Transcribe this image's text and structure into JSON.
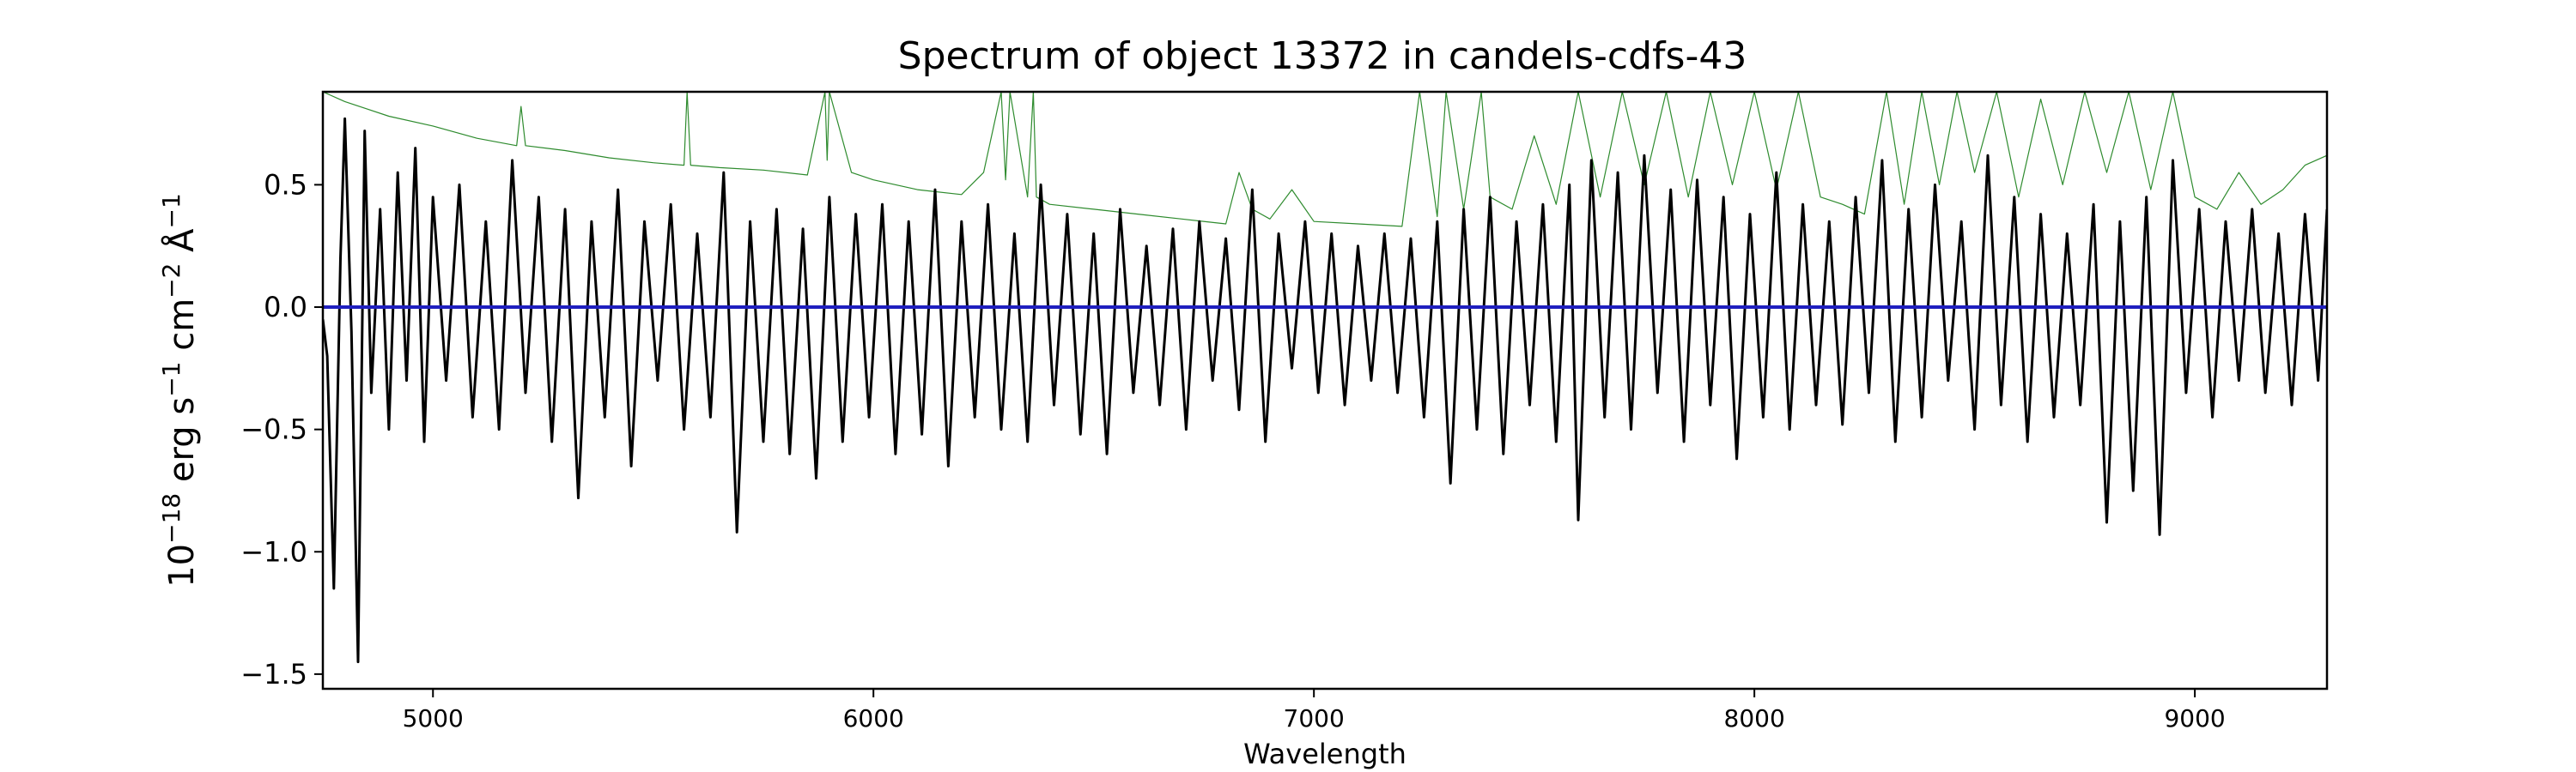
{
  "chart_data": {
    "type": "line",
    "title": "Spectrum of object 13372 in candels-cdfs-43",
    "xlabel": "Wavelength",
    "ylabel": {
      "base": "10",
      "exp": "−18",
      "rest": " erg s",
      "s_exp": "−1",
      "cm": " cm",
      "cm_exp": "−2",
      "ang": " Å",
      "ang_exp": "−1"
    },
    "xlim": [
      4750,
      9300
    ],
    "ylim": [
      -1.56,
      0.88
    ],
    "xticks": [
      5000,
      6000,
      7000,
      8000,
      9000
    ],
    "xtick_labels": [
      "5000",
      "6000",
      "7000",
      "8000",
      "9000"
    ],
    "yticks": [
      -1.5,
      -1.0,
      -0.5,
      0.0,
      0.5
    ],
    "ytick_labels": [
      "−1.5",
      "−1.0",
      "−0.5",
      "0.0",
      "0.5"
    ],
    "grid": false,
    "series": [
      {
        "role": "sky-noise",
        "color": "#2e8b2e",
        "x": [
          4750,
          4800,
          4900,
          5000,
          5100,
          5190,
          5200,
          5210,
          5300,
          5400,
          5500,
          5570,
          5577,
          5585,
          5650,
          5750,
          5850,
          5890,
          5895,
          5900,
          5950,
          6000,
          6100,
          6200,
          6250,
          6290,
          6300,
          6310,
          6350,
          6363,
          6370,
          6400,
          6500,
          6600,
          6700,
          6800,
          6830,
          6860,
          6900,
          6950,
          7000,
          7100,
          7200,
          7240,
          7280,
          7300,
          7340,
          7380,
          7400,
          7450,
          7500,
          7550,
          7600,
          7650,
          7700,
          7750,
          7800,
          7850,
          7900,
          7950,
          8000,
          8050,
          8100,
          8150,
          8200,
          8250,
          8300,
          8340,
          8380,
          8420,
          8460,
          8500,
          8550,
          8600,
          8650,
          8700,
          8750,
          8800,
          8850,
          8900,
          8950,
          9000,
          9050,
          9100,
          9150,
          9200,
          9250,
          9300
        ],
        "y": [
          0.88,
          0.84,
          0.78,
          0.74,
          0.69,
          0.66,
          0.82,
          0.66,
          0.64,
          0.61,
          0.59,
          0.58,
          0.88,
          0.58,
          0.57,
          0.56,
          0.54,
          0.88,
          0.6,
          0.88,
          0.55,
          0.52,
          0.48,
          0.46,
          0.55,
          0.88,
          0.52,
          0.88,
          0.45,
          0.88,
          0.45,
          0.42,
          0.4,
          0.38,
          0.36,
          0.34,
          0.55,
          0.4,
          0.36,
          0.48,
          0.35,
          0.34,
          0.33,
          0.88,
          0.37,
          0.88,
          0.4,
          0.88,
          0.45,
          0.4,
          0.7,
          0.42,
          0.88,
          0.45,
          0.88,
          0.5,
          0.88,
          0.45,
          0.88,
          0.5,
          0.88,
          0.48,
          0.88,
          0.45,
          0.42,
          0.38,
          0.88,
          0.42,
          0.88,
          0.5,
          0.88,
          0.55,
          0.88,
          0.45,
          0.85,
          0.5,
          0.88,
          0.55,
          0.88,
          0.48,
          0.88,
          0.45,
          0.4,
          0.55,
          0.42,
          0.48,
          0.58,
          0.62
        ]
      },
      {
        "role": "flux",
        "color": "#000000",
        "x": [
          4750,
          4760,
          4775,
          4790,
          4800,
          4815,
          4830,
          4845,
          4860,
          4880,
          4900,
          4920,
          4940,
          4960,
          4980,
          5000,
          5030,
          5060,
          5090,
          5120,
          5150,
          5180,
          5210,
          5240,
          5270,
          5300,
          5330,
          5360,
          5390,
          5420,
          5450,
          5480,
          5510,
          5540,
          5570,
          5600,
          5630,
          5660,
          5690,
          5720,
          5750,
          5780,
          5810,
          5840,
          5870,
          5900,
          5930,
          5960,
          5990,
          6020,
          6050,
          6080,
          6110,
          6140,
          6170,
          6200,
          6230,
          6260,
          6290,
          6320,
          6350,
          6380,
          6410,
          6440,
          6470,
          6500,
          6530,
          6560,
          6590,
          6620,
          6650,
          6680,
          6710,
          6740,
          6770,
          6800,
          6830,
          6860,
          6890,
          6920,
          6950,
          6980,
          7010,
          7040,
          7070,
          7100,
          7130,
          7160,
          7190,
          7220,
          7250,
          7280,
          7310,
          7340,
          7370,
          7400,
          7430,
          7460,
          7490,
          7520,
          7550,
          7580,
          7600,
          7630,
          7660,
          7690,
          7720,
          7750,
          7780,
          7810,
          7840,
          7870,
          7900,
          7930,
          7960,
          7990,
          8020,
          8050,
          8080,
          8110,
          8140,
          8170,
          8200,
          8230,
          8260,
          8290,
          8320,
          8350,
          8380,
          8410,
          8440,
          8470,
          8500,
          8530,
          8560,
          8590,
          8620,
          8650,
          8680,
          8710,
          8740,
          8770,
          8800,
          8830,
          8860,
          8890,
          8920,
          8950,
          8980,
          9010,
          9040,
          9070,
          9100,
          9130,
          9160,
          9190,
          9220,
          9250,
          9280,
          9300
        ],
        "y": [
          -0.05,
          -0.2,
          -1.15,
          0.2,
          0.77,
          -0.1,
          -1.45,
          0.72,
          -0.35,
          0.4,
          -0.5,
          0.55,
          -0.3,
          0.65,
          -0.55,
          0.45,
          -0.3,
          0.5,
          -0.45,
          0.35,
          -0.5,
          0.6,
          -0.35,
          0.45,
          -0.55,
          0.4,
          -0.78,
          0.35,
          -0.45,
          0.48,
          -0.65,
          0.35,
          -0.3,
          0.42,
          -0.5,
          0.3,
          -0.45,
          0.55,
          -0.92,
          0.35,
          -0.55,
          0.4,
          -0.6,
          0.32,
          -0.7,
          0.45,
          -0.55,
          0.38,
          -0.45,
          0.42,
          -0.6,
          0.35,
          -0.52,
          0.48,
          -0.65,
          0.35,
          -0.45,
          0.42,
          -0.5,
          0.3,
          -0.55,
          0.5,
          -0.4,
          0.38,
          -0.52,
          0.3,
          -0.6,
          0.4,
          -0.35,
          0.25,
          -0.4,
          0.32,
          -0.5,
          0.35,
          -0.3,
          0.28,
          -0.42,
          0.48,
          -0.55,
          0.3,
          -0.25,
          0.35,
          -0.35,
          0.3,
          -0.4,
          0.25,
          -0.3,
          0.3,
          -0.35,
          0.28,
          -0.45,
          0.35,
          -0.72,
          0.4,
          -0.5,
          0.45,
          -0.6,
          0.35,
          -0.4,
          0.42,
          -0.55,
          0.5,
          -0.87,
          0.6,
          -0.45,
          0.55,
          -0.5,
          0.62,
          -0.35,
          0.48,
          -0.55,
          0.52,
          -0.4,
          0.45,
          -0.62,
          0.38,
          -0.45,
          0.55,
          -0.5,
          0.42,
          -0.4,
          0.35,
          -0.48,
          0.45,
          -0.35,
          0.6,
          -0.55,
          0.4,
          -0.45,
          0.5,
          -0.3,
          0.35,
          -0.5,
          0.62,
          -0.4,
          0.45,
          -0.55,
          0.38,
          -0.45,
          0.3,
          -0.4,
          0.42,
          -0.88,
          0.35,
          -0.75,
          0.45,
          -0.93,
          0.6,
          -0.35,
          0.4,
          -0.45,
          0.35,
          -0.3,
          0.4,
          -0.35,
          0.3,
          -0.4,
          0.38,
          -0.3,
          0.4
        ]
      },
      {
        "role": "model",
        "color": "#1f1fbf",
        "x": [
          4750,
          9300
        ],
        "y": [
          0.0,
          0.0
        ]
      }
    ]
  }
}
